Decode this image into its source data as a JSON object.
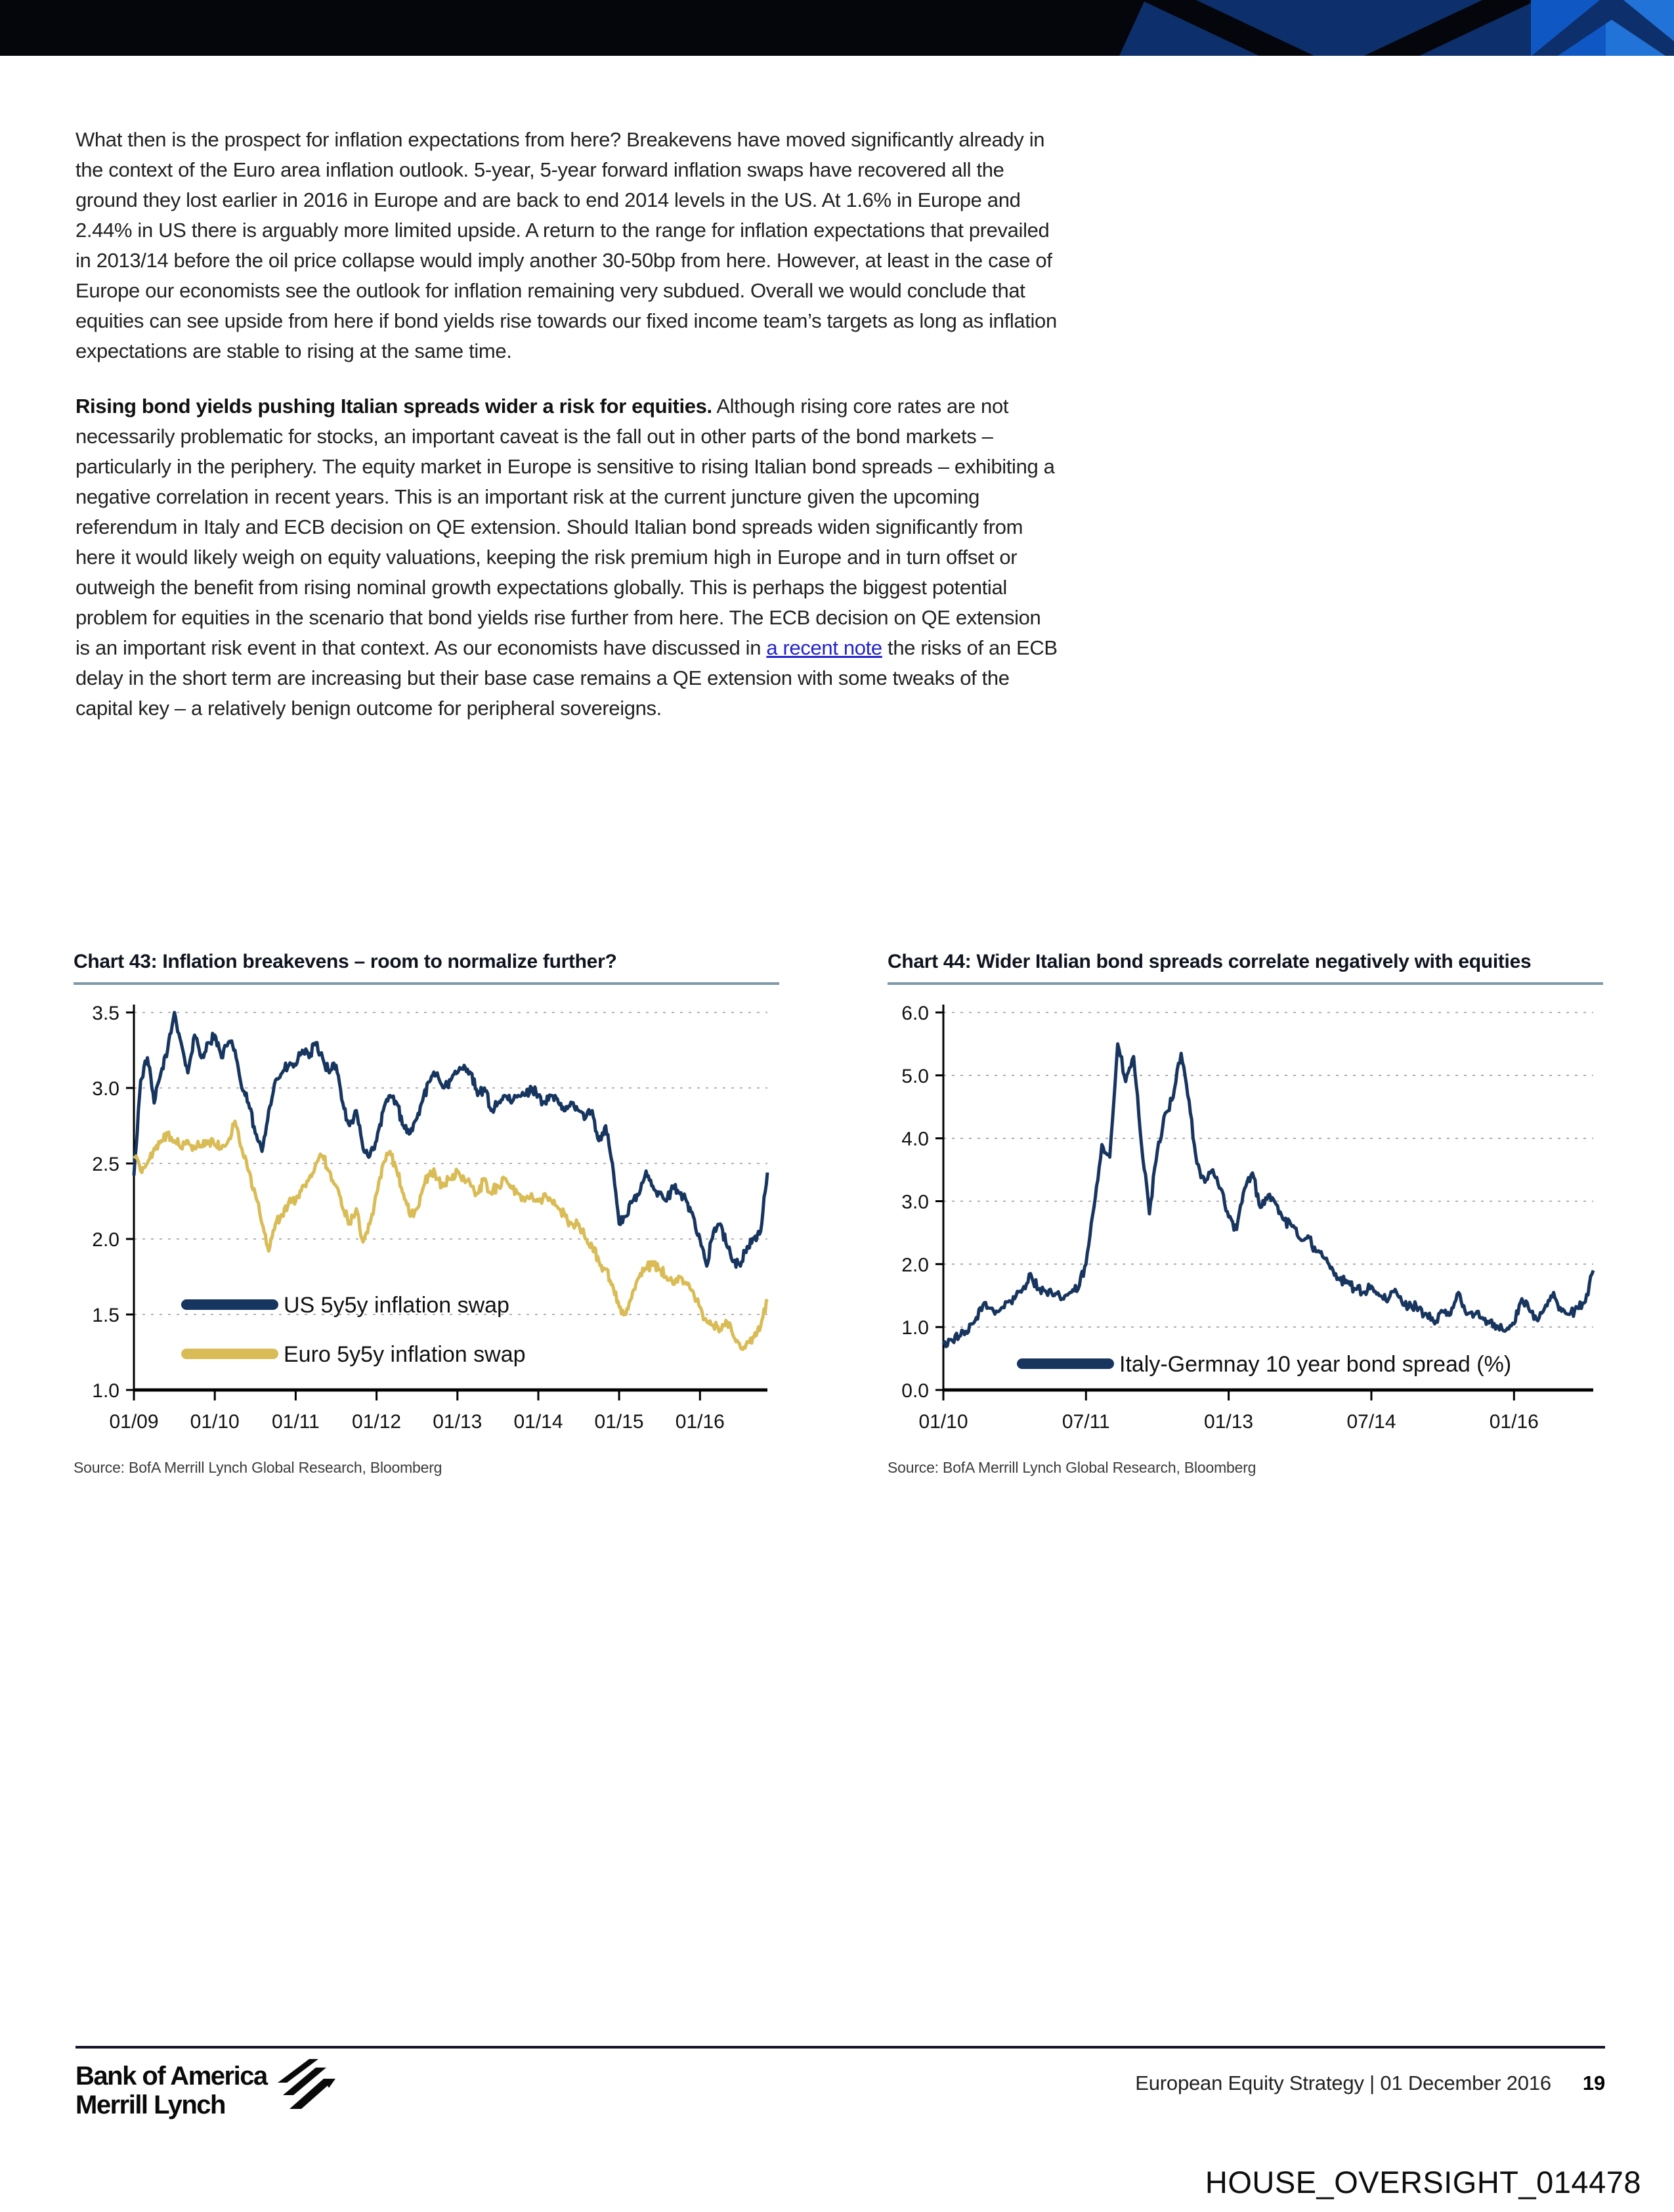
{
  "colors": {
    "banner_black": "#05060B",
    "banner_navy": "#0D2F6B",
    "banner_blue": "#0F58C4",
    "banner_light_blue": "#2173D8",
    "title_rule": "#7d98aa",
    "footer_rule": "#14142c",
    "link": "#2323CB",
    "us_series": "#16355F",
    "euro_series": "#D9BC55",
    "spread_series": "#17355E"
  },
  "document": {
    "paragraphs": [
      {
        "text": "What then is the prospect for inflation expectations from here? Breakevens have moved significantly already in the context of the Euro area inflation outlook. 5-year, 5-year forward inflation swaps have recovered all the ground they lost earlier in 2016 in Europe and are back to end 2014 levels in the US. At 1.6% in Europe and 2.44% in US there is arguably more limited upside. A return to the range for inflation expectations that prevailed in 2013/14 before the oil price collapse would imply another 30-50bp from here. However, at least in the case of Europe our economists see the outlook for inflation remaining very subdued. Overall we would conclude that equities can see upside from here if bond yields rise towards our fixed income team’s targets as long as inflation expectations are stable to rising at the same time."
      },
      {
        "bold_lead": "Rising bond yields pushing Italian spreads wider a risk for equities.",
        "text_before_link": " Although rising core rates are not necessarily problematic for stocks, an important caveat is the fall out in other parts of the bond markets – particularly in the periphery. The equity market in Europe is sensitive to rising Italian bond spreads – exhibiting a negative correlation in recent years. This is an important risk at the current juncture given the upcoming referendum in Italy and ECB decision on QE extension. Should Italian bond spreads widen significantly from here it would likely weigh on equity valuations, keeping the risk premium high in Europe and in turn offset or outweigh the benefit from rising nominal growth expectations globally. This is perhaps the biggest potential problem for equities in the scenario that bond yields rise further from here. The ECB decision on QE extension is an important risk event in that context. As our economists have discussed in ",
        "link_text": "a recent note",
        "text_after_link": " the risks of an ECB delay in the short term are increasing but their base case remains a QE extension with some tweaks of the capital key – a relatively benign outcome for peripheral sovereigns."
      }
    ],
    "footer": {
      "brand_line1": "Bank of America",
      "brand_line2": "Merrill Lynch",
      "right_text": "European Equity Strategy | 01 December 2016",
      "page_number": "19"
    },
    "watermark": "HOUSE_OVERSIGHT_014478"
  },
  "chart_data": [
    {
      "type": "line",
      "title": "Chart 43: Inflation breakevens – room to normalize further?",
      "source": "Source: BofA Merrill Lynch Global Research, Bloomberg",
      "x_interval": "monthly",
      "x_start": "01/09",
      "x_end": "11/16",
      "x_months_total": 95,
      "xtick_positions": [
        0,
        12,
        24,
        36,
        48,
        60,
        72,
        84
      ],
      "xticklabels": [
        "01/09",
        "01/10",
        "01/11",
        "01/12",
        "01/13",
        "01/14",
        "01/15",
        "01/16"
      ],
      "ylim": [
        1.0,
        3.5
      ],
      "yticks": [
        1.0,
        1.5,
        2.0,
        2.5,
        3.0,
        3.5
      ],
      "yticklabels": [
        "1.0",
        "1.5",
        "2.0",
        "2.5",
        "3.0",
        "3.5"
      ],
      "grid": "dashed-horizontal",
      "legend_position": "inside-lower-left",
      "series": [
        {
          "name": "US 5y5y inflation swap",
          "color": "#16355F",
          "values": [
            2.42,
            3.05,
            3.2,
            2.9,
            3.1,
            3.25,
            3.5,
            3.3,
            3.1,
            3.35,
            3.2,
            3.3,
            3.35,
            3.2,
            3.3,
            3.25,
            3.0,
            2.9,
            2.7,
            2.58,
            2.85,
            3.05,
            3.1,
            3.15,
            3.15,
            3.25,
            3.2,
            3.3,
            3.2,
            3.1,
            3.15,
            2.9,
            2.75,
            2.85,
            2.6,
            2.55,
            2.65,
            2.85,
            2.95,
            2.9,
            2.75,
            2.7,
            2.8,
            2.95,
            3.05,
            3.1,
            3.0,
            3.05,
            3.1,
            3.15,
            3.1,
            2.95,
            3.0,
            2.85,
            2.9,
            2.95,
            2.9,
            2.95,
            2.95,
            3.0,
            2.95,
            2.9,
            2.95,
            2.9,
            2.85,
            2.9,
            2.85,
            2.8,
            2.85,
            2.65,
            2.75,
            2.5,
            2.1,
            2.15,
            2.25,
            2.3,
            2.45,
            2.35,
            2.3,
            2.25,
            2.35,
            2.3,
            2.25,
            2.15,
            2.0,
            1.82,
            2.05,
            2.1,
            1.95,
            1.85,
            1.82,
            1.95,
            2.0,
            2.05,
            2.44
          ]
        },
        {
          "name": "Euro 5y5y inflation swap",
          "color": "#D9BC55",
          "values": [
            2.55,
            2.45,
            2.5,
            2.6,
            2.65,
            2.7,
            2.65,
            2.6,
            2.65,
            2.6,
            2.62,
            2.65,
            2.62,
            2.6,
            2.65,
            2.78,
            2.6,
            2.45,
            2.3,
            2.1,
            1.92,
            2.1,
            2.15,
            2.25,
            2.25,
            2.35,
            2.4,
            2.5,
            2.55,
            2.45,
            2.35,
            2.2,
            2.1,
            2.2,
            1.98,
            2.1,
            2.3,
            2.5,
            2.58,
            2.45,
            2.3,
            2.15,
            2.2,
            2.35,
            2.45,
            2.4,
            2.35,
            2.4,
            2.45,
            2.4,
            2.35,
            2.3,
            2.4,
            2.3,
            2.35,
            2.4,
            2.35,
            2.3,
            2.25,
            2.3,
            2.25,
            2.3,
            2.25,
            2.2,
            2.15,
            2.1,
            2.1,
            2.0,
            1.95,
            1.85,
            1.8,
            1.7,
            1.55,
            1.5,
            1.65,
            1.75,
            1.8,
            1.85,
            1.8,
            1.75,
            1.7,
            1.75,
            1.7,
            1.65,
            1.55,
            1.45,
            1.42,
            1.4,
            1.45,
            1.35,
            1.28,
            1.32,
            1.35,
            1.42,
            1.6
          ]
        }
      ]
    },
    {
      "type": "line",
      "title": "Chart 44: Wider Italian bond spreads correlate negatively with equities",
      "source": "Source: BofA Merrill Lynch Global Research, Bloomberg",
      "x_interval": "monthly",
      "x_start": "01/10",
      "x_end": "11/16",
      "x_months_total": 83,
      "xtick_positions": [
        0,
        18,
        36,
        54,
        72
      ],
      "xticklabels": [
        "01/10",
        "07/11",
        "01/13",
        "07/14",
        "01/16"
      ],
      "ylim": [
        0.0,
        6.0
      ],
      "yticks": [
        0.0,
        1.0,
        2.0,
        3.0,
        4.0,
        5.0,
        6.0
      ],
      "yticklabels": [
        "0.0",
        "1.0",
        "2.0",
        "3.0",
        "4.0",
        "5.0",
        "6.0"
      ],
      "grid": "dashed-horizontal",
      "legend_position": "inside-bottom-center",
      "series": [
        {
          "name": "Italy-Germnay 10 year bond spread (%)",
          "color": "#17355E",
          "values": [
            0.72,
            0.8,
            0.85,
            0.9,
            1.1,
            1.35,
            1.3,
            1.25,
            1.4,
            1.45,
            1.6,
            1.85,
            1.6,
            1.55,
            1.5,
            1.45,
            1.55,
            1.6,
            2.0,
            2.9,
            3.9,
            3.7,
            5.5,
            4.9,
            5.3,
            3.9,
            2.8,
            3.8,
            4.4,
            4.65,
            5.35,
            4.6,
            3.6,
            3.3,
            3.5,
            3.2,
            2.75,
            2.55,
            3.2,
            3.45,
            2.9,
            3.1,
            2.95,
            2.7,
            2.6,
            2.4,
            2.45,
            2.2,
            2.1,
            1.95,
            1.75,
            1.7,
            1.6,
            1.55,
            1.65,
            1.5,
            1.4,
            1.6,
            1.35,
            1.35,
            1.3,
            1.2,
            1.05,
            1.25,
            1.2,
            1.55,
            1.2,
            1.2,
            1.15,
            1.1,
            1.0,
            0.95,
            1.05,
            1.45,
            1.25,
            1.1,
            1.35,
            1.55,
            1.25,
            1.2,
            1.3,
            1.4,
            1.9
          ]
        }
      ]
    }
  ]
}
